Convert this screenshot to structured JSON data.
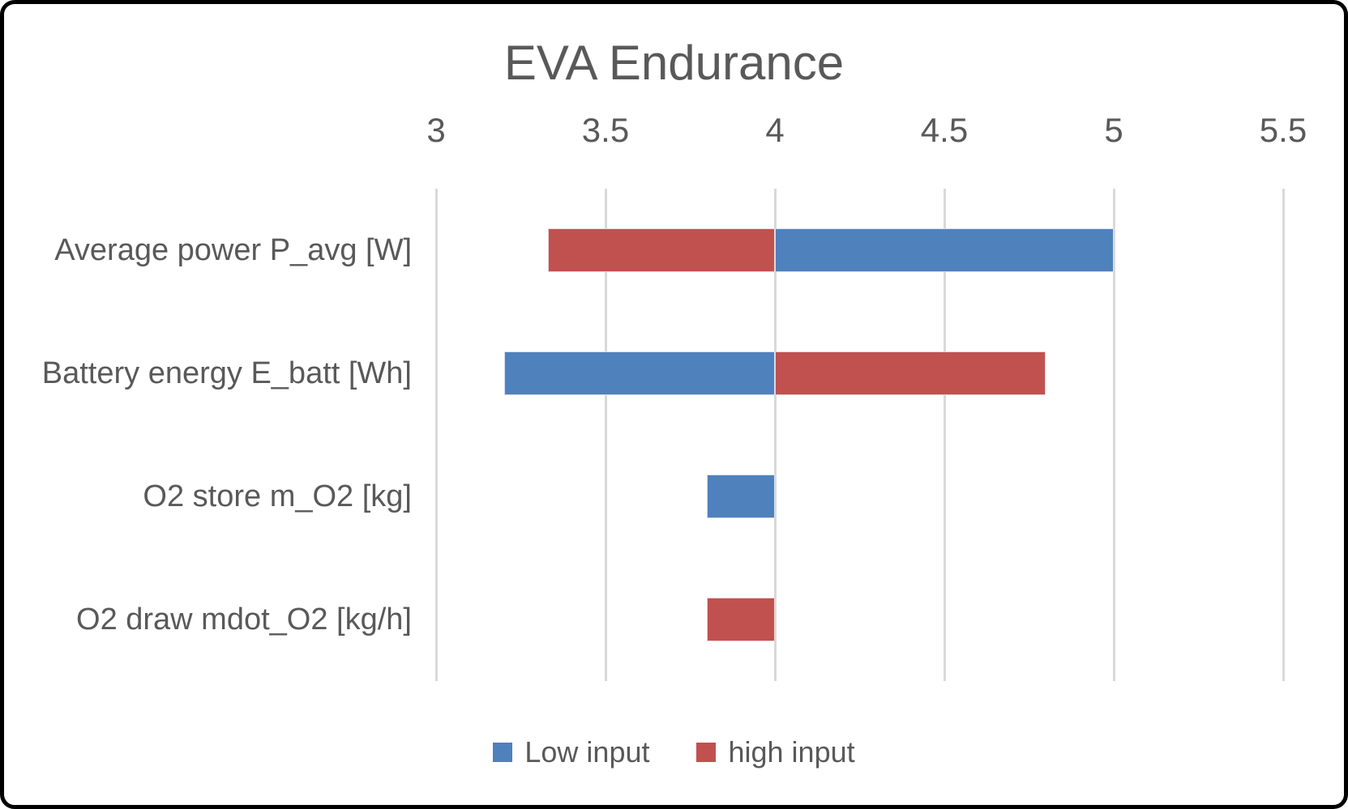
{
  "title": "EVA Endurance",
  "colors": {
    "low_input": "#4f81bd",
    "high_input": "#c0514f",
    "text": "#595959",
    "gridline": "#d9d9d9",
    "frame_border": "#000000",
    "background": "#ffffff"
  },
  "chart_data": {
    "type": "bar",
    "subtype": "tornado",
    "orientation": "horizontal",
    "title": "EVA Endurance",
    "base_value": 4,
    "categories": [
      "Average power P_avg [W]",
      "Battery energy E_batt [Wh]",
      "O2 store m_O2 [kg]",
      "O2 draw mdot_O2 [kg/h]"
    ],
    "series": [
      {
        "name": "Low input",
        "color": "#4f81bd",
        "values": [
          5.0,
          3.2,
          3.8,
          4.0
        ]
      },
      {
        "name": "high input",
        "color": "#c0514f",
        "values": [
          3.33,
          4.8,
          4.0,
          3.8
        ]
      }
    ],
    "xlim": [
      3,
      5.5
    ],
    "x_ticks": [
      "3",
      "3.5",
      "4",
      "4.5",
      "5",
      "5.5"
    ],
    "x_tick_values": [
      3,
      3.5,
      4,
      4.5,
      5,
      5.5
    ],
    "x_axis_position": "top",
    "grid": true,
    "legend_position": "bottom",
    "notes": "Each bar spans from the base value 4 to the series value; bars equal to 4 have zero length and are not visible."
  },
  "legend": {
    "items": [
      {
        "label": "Low input",
        "color": "#4f81bd"
      },
      {
        "label": "high input",
        "color": "#c0514f"
      }
    ]
  }
}
